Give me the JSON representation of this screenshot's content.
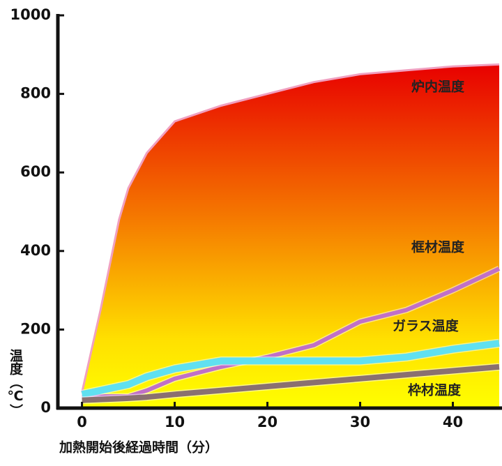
{
  "chart_data": {
    "type": "line",
    "x_label": "加熱開始後経過時間（分）",
    "y_label": "温度（℃）",
    "x": [
      0,
      2,
      4,
      5,
      7,
      10,
      15,
      20,
      25,
      30,
      35,
      40,
      45
    ],
    "series": [
      {
        "name": "炉内温度",
        "color": "#e00000",
        "area": true,
        "values": [
          40,
          250,
          480,
          560,
          650,
          730,
          770,
          800,
          830,
          850,
          860,
          870,
          875
        ]
      },
      {
        "name": "框材温度",
        "color": "#c070c8",
        "values": [
          30,
          30,
          30,
          30,
          45,
          75,
          105,
          130,
          160,
          220,
          250,
          300,
          355
        ]
      },
      {
        "name": "ガラス温度",
        "color": "#60e0f0",
        "values": [
          35,
          45,
          55,
          60,
          80,
          100,
          120,
          120,
          120,
          120,
          130,
          150,
          165
        ]
      },
      {
        "name": "枠材温度",
        "color": "#8a7070",
        "values": [
          20,
          22,
          24,
          25,
          28,
          35,
          45,
          55,
          65,
          75,
          85,
          95,
          105
        ]
      }
    ],
    "xlim": [
      -2.6,
      45.3
    ],
    "xticks": [
      0,
      10,
      20,
      30,
      40
    ],
    "ylim": [
      0,
      1000
    ],
    "yticks": [
      0,
      200,
      400,
      600,
      800,
      1000
    ]
  }
}
